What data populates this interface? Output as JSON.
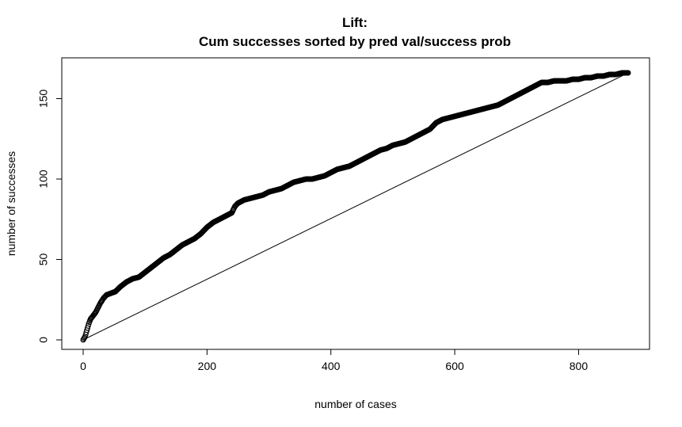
{
  "chart_data": {
    "type": "scatter",
    "title": [
      "Lift:",
      "Cum successes sorted by pred val/success prob"
    ],
    "xlabel": "number of cases",
    "ylabel": "number of successes",
    "xlim": [
      0,
      880
    ],
    "ylim": [
      0,
      166
    ],
    "x_ticks": [
      0,
      200,
      400,
      600,
      800
    ],
    "y_ticks": [
      0,
      50,
      100,
      150
    ],
    "grid": false,
    "series": [
      {
        "kind": "cumulative-lift",
        "marker": "open-circle",
        "points": [
          [
            0,
            0
          ],
          [
            3,
            2
          ],
          [
            6,
            6
          ],
          [
            9,
            10
          ],
          [
            12,
            13
          ],
          [
            16,
            15
          ],
          [
            20,
            17
          ],
          [
            24,
            20
          ],
          [
            28,
            23
          ],
          [
            33,
            26
          ],
          [
            38,
            28
          ],
          [
            45,
            29
          ],
          [
            52,
            30
          ],
          [
            60,
            33
          ],
          [
            70,
            36
          ],
          [
            80,
            38
          ],
          [
            90,
            39
          ],
          [
            100,
            42
          ],
          [
            110,
            45
          ],
          [
            120,
            48
          ],
          [
            130,
            51
          ],
          [
            140,
            53
          ],
          [
            150,
            56
          ],
          [
            160,
            59
          ],
          [
            170,
            61
          ],
          [
            180,
            63
          ],
          [
            190,
            66
          ],
          [
            200,
            70
          ],
          [
            210,
            73
          ],
          [
            220,
            75
          ],
          [
            230,
            77
          ],
          [
            240,
            79
          ],
          [
            245,
            83
          ],
          [
            250,
            85
          ],
          [
            260,
            87
          ],
          [
            270,
            88
          ],
          [
            280,
            89
          ],
          [
            290,
            90
          ],
          [
            300,
            92
          ],
          [
            310,
            93
          ],
          [
            320,
            94
          ],
          [
            330,
            96
          ],
          [
            340,
            98
          ],
          [
            350,
            99
          ],
          [
            360,
            100
          ],
          [
            370,
            100
          ],
          [
            380,
            101
          ],
          [
            390,
            102
          ],
          [
            400,
            104
          ],
          [
            410,
            106
          ],
          [
            420,
            107
          ],
          [
            430,
            108
          ],
          [
            440,
            110
          ],
          [
            450,
            112
          ],
          [
            460,
            114
          ],
          [
            470,
            116
          ],
          [
            480,
            118
          ],
          [
            490,
            119
          ],
          [
            500,
            121
          ],
          [
            510,
            122
          ],
          [
            520,
            123
          ],
          [
            530,
            125
          ],
          [
            540,
            127
          ],
          [
            550,
            129
          ],
          [
            560,
            131
          ],
          [
            570,
            135
          ],
          [
            580,
            137
          ],
          [
            590,
            138
          ],
          [
            600,
            139
          ],
          [
            610,
            140
          ],
          [
            620,
            141
          ],
          [
            630,
            142
          ],
          [
            640,
            143
          ],
          [
            650,
            144
          ],
          [
            660,
            145
          ],
          [
            670,
            146
          ],
          [
            680,
            148
          ],
          [
            690,
            150
          ],
          [
            700,
            152
          ],
          [
            710,
            154
          ],
          [
            720,
            156
          ],
          [
            730,
            158
          ],
          [
            740,
            160
          ],
          [
            750,
            160
          ],
          [
            760,
            161
          ],
          [
            770,
            161
          ],
          [
            780,
            161
          ],
          [
            790,
            162
          ],
          [
            800,
            162
          ],
          [
            810,
            163
          ],
          [
            820,
            163
          ],
          [
            830,
            164
          ],
          [
            840,
            164
          ],
          [
            850,
            165
          ],
          [
            860,
            165
          ],
          [
            870,
            166
          ],
          [
            880,
            166
          ]
        ]
      },
      {
        "kind": "baseline",
        "points": [
          [
            0,
            0
          ],
          [
            880,
            166
          ]
        ]
      }
    ]
  }
}
